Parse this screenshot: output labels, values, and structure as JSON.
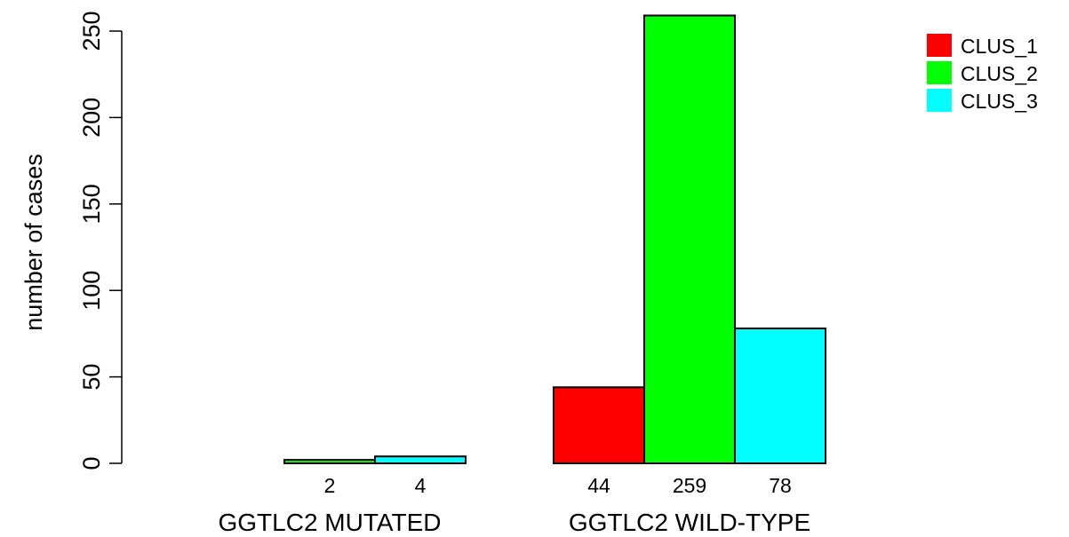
{
  "chart_data": {
    "type": "bar",
    "title": "",
    "xlabel": "",
    "ylabel": "number of cases",
    "ylim": [
      0,
      260
    ],
    "yticks": [
      0,
      50,
      100,
      150,
      200,
      250
    ],
    "grid": false,
    "legend_position": "top-right",
    "categories": [
      "GGTLC2 MUTATED",
      "GGTLC2 WILD-TYPE"
    ],
    "series": [
      {
        "name": "CLUS_1",
        "color": "#ff0000",
        "values": [
          0,
          44
        ]
      },
      {
        "name": "CLUS_2",
        "color": "#00ff00",
        "values": [
          2,
          259
        ]
      },
      {
        "name": "CLUS_3",
        "color": "#00ffff",
        "values": [
          4,
          78
        ]
      }
    ],
    "value_labels": [
      [
        "",
        "2",
        "4"
      ],
      [
        "44",
        "259",
        "78"
      ]
    ]
  }
}
